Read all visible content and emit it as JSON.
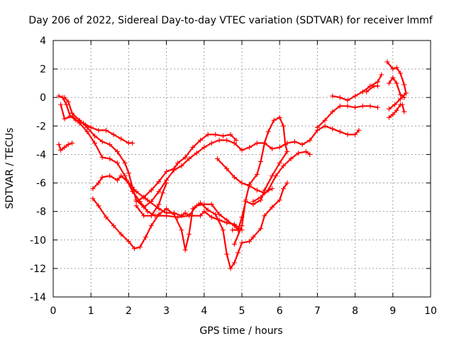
{
  "chart_data": {
    "type": "scatter",
    "title": "Day 206 of 2022, Sidereal Day-to-day VTEC variation (SDTVAR) for receiver lmmf",
    "xlabel": "GPS time / hours",
    "ylabel": "SDTVAR / TECUs",
    "xlim": [
      0,
      10
    ],
    "ylim": [
      -14,
      4
    ],
    "xticks": [
      "0",
      "1",
      "2",
      "3",
      "4",
      "5",
      "6",
      "7",
      "8",
      "9",
      "10"
    ],
    "yticks": [
      "4",
      "2",
      "0",
      "-2",
      "-4",
      "-6",
      "-8",
      "-10",
      "-12",
      "-14"
    ],
    "grid": true,
    "marker": "+",
    "color": "#ff0000",
    "series": [
      {
        "points": [
          [
            0.15,
            0.1
          ],
          [
            0.25,
            0.0
          ],
          [
            0.35,
            -0.5
          ],
          [
            0.45,
            -1.3
          ],
          [
            0.6,
            -1.6
          ],
          [
            0.8,
            -1.8
          ],
          [
            1.0,
            -2.1
          ],
          [
            1.2,
            -2.3
          ],
          [
            1.4,
            -2.3
          ],
          [
            1.6,
            -2.6
          ],
          [
            1.8,
            -2.9
          ],
          [
            2.0,
            -3.2
          ],
          [
            2.1,
            -3.2
          ]
        ]
      },
      {
        "points": [
          [
            0.15,
            -3.3
          ],
          [
            0.2,
            -3.7
          ],
          [
            0.3,
            -3.5
          ],
          [
            0.4,
            -3.3
          ],
          [
            0.5,
            -3.2
          ]
        ]
      },
      {
        "points": [
          [
            0.2,
            -0.5
          ],
          [
            0.3,
            -1.5
          ],
          [
            0.5,
            -1.3
          ],
          [
            0.7,
            -1.8
          ],
          [
            0.9,
            -2.4
          ],
          [
            1.1,
            -3.2
          ],
          [
            1.3,
            -4.2
          ],
          [
            1.5,
            -4.3
          ],
          [
            1.7,
            -4.6
          ],
          [
            1.9,
            -5.5
          ],
          [
            2.1,
            -6.6
          ],
          [
            2.3,
            -7.3
          ],
          [
            2.5,
            -8.0
          ],
          [
            2.7,
            -8.3
          ],
          [
            3.0,
            -8.3
          ],
          [
            3.3,
            -8.4
          ],
          [
            3.6,
            -8.3
          ],
          [
            3.9,
            -8.3
          ],
          [
            4.0,
            -8.0
          ],
          [
            4.2,
            -8.4
          ],
          [
            4.4,
            -8.6
          ],
          [
            4.6,
            -8.8
          ],
          [
            4.8,
            -8.9
          ],
          [
            5.0,
            -9.3
          ]
        ]
      },
      {
        "points": [
          [
            0.3,
            0.0
          ],
          [
            0.4,
            -0.3
          ],
          [
            0.5,
            -1.1
          ],
          [
            0.7,
            -1.6
          ],
          [
            0.9,
            -2.1
          ],
          [
            1.1,
            -2.7
          ],
          [
            1.3,
            -3.1
          ],
          [
            1.5,
            -3.3
          ],
          [
            1.7,
            -3.8
          ],
          [
            1.9,
            -4.6
          ],
          [
            2.0,
            -5.3
          ],
          [
            2.1,
            -6.3
          ],
          [
            2.2,
            -7.2
          ],
          [
            2.4,
            -7.7
          ],
          [
            2.6,
            -7.3
          ],
          [
            2.8,
            -6.6
          ],
          [
            3.0,
            -5.8
          ],
          [
            3.2,
            -5.1
          ],
          [
            3.4,
            -4.8
          ],
          [
            3.6,
            -4.3
          ],
          [
            3.8,
            -3.9
          ],
          [
            4.0,
            -3.5
          ],
          [
            4.2,
            -3.2
          ],
          [
            4.4,
            -3.0
          ],
          [
            4.6,
            -3.0
          ],
          [
            4.8,
            -3.2
          ],
          [
            5.0,
            -3.7
          ],
          [
            5.2,
            -3.5
          ],
          [
            5.4,
            -3.2
          ],
          [
            5.6,
            -3.2
          ],
          [
            5.8,
            -3.6
          ],
          [
            6.0,
            -3.5
          ],
          [
            6.2,
            -3.2
          ],
          [
            6.4,
            -3.1
          ],
          [
            6.6,
            -3.3
          ],
          [
            6.8,
            -3.0
          ],
          [
            7.0,
            -2.3
          ],
          [
            7.2,
            -2.0
          ],
          [
            7.4,
            -2.2
          ],
          [
            7.6,
            -2.4
          ],
          [
            7.8,
            -2.6
          ],
          [
            8.0,
            -2.6
          ],
          [
            8.1,
            -2.3
          ]
        ]
      },
      {
        "points": [
          [
            1.05,
            -6.4
          ],
          [
            1.2,
            -6.0
          ],
          [
            1.3,
            -5.6
          ],
          [
            1.5,
            -5.5
          ],
          [
            1.7,
            -5.8
          ],
          [
            1.8,
            -5.5
          ],
          [
            2.0,
            -6.0
          ],
          [
            2.2,
            -6.6
          ],
          [
            2.5,
            -7.2
          ],
          [
            2.8,
            -7.8
          ],
          [
            3.0,
            -8.1
          ],
          [
            3.2,
            -8.1
          ],
          [
            3.4,
            -8.3
          ],
          [
            3.5,
            -8.1
          ],
          [
            3.6,
            -8.3
          ],
          [
            3.8,
            -7.6
          ],
          [
            4.0,
            -7.5
          ],
          [
            4.2,
            -7.5
          ],
          [
            4.4,
            -8.2
          ],
          [
            4.6,
            -8.6
          ],
          [
            4.8,
            -9.0
          ],
          [
            4.9,
            -9.3
          ]
        ]
      },
      {
        "points": [
          [
            1.05,
            -7.1
          ],
          [
            1.2,
            -7.6
          ],
          [
            1.4,
            -8.4
          ],
          [
            1.6,
            -9.0
          ],
          [
            1.8,
            -9.6
          ],
          [
            2.0,
            -10.1
          ],
          [
            2.15,
            -10.6
          ],
          [
            2.3,
            -10.5
          ],
          [
            2.45,
            -9.8
          ],
          [
            2.6,
            -9.0
          ],
          [
            2.8,
            -8.2
          ],
          [
            3.0,
            -7.8
          ],
          [
            3.2,
            -8.2
          ],
          [
            3.4,
            -9.3
          ],
          [
            3.5,
            -10.7
          ],
          [
            3.6,
            -9.6
          ],
          [
            3.7,
            -7.8
          ],
          [
            3.9,
            -7.4
          ],
          [
            4.1,
            -7.9
          ],
          [
            4.3,
            -8.2
          ],
          [
            4.5,
            -9.3
          ],
          [
            4.6,
            -11.0
          ],
          [
            4.7,
            -12.0
          ],
          [
            4.8,
            -11.6
          ],
          [
            4.9,
            -10.9
          ],
          [
            5.0,
            -10.2
          ],
          [
            5.2,
            -10.1
          ],
          [
            5.3,
            -9.8
          ],
          [
            5.5,
            -9.2
          ],
          [
            5.6,
            -8.3
          ],
          [
            5.8,
            -7.7
          ],
          [
            6.0,
            -7.2
          ],
          [
            6.1,
            -6.4
          ],
          [
            6.2,
            -6.0
          ]
        ]
      },
      {
        "points": [
          [
            2.2,
            -7.3
          ],
          [
            2.4,
            -7.0
          ],
          [
            2.6,
            -6.5
          ],
          [
            2.8,
            -5.9
          ],
          [
            3.0,
            -5.2
          ],
          [
            3.2,
            -5.0
          ],
          [
            3.3,
            -4.6
          ],
          [
            3.5,
            -4.2
          ],
          [
            3.7,
            -3.5
          ],
          [
            3.9,
            -3.0
          ],
          [
            4.1,
            -2.6
          ],
          [
            4.3,
            -2.6
          ],
          [
            4.5,
            -2.7
          ],
          [
            4.7,
            -2.6
          ],
          [
            4.85,
            -3.0
          ]
        ]
      },
      {
        "points": [
          [
            2.2,
            -7.6
          ],
          [
            2.4,
            -8.3
          ],
          [
            2.6,
            -8.3
          ],
          [
            2.8,
            -7.5
          ],
          [
            2.9,
            -6.7
          ],
          [
            3.0,
            -6.0
          ]
        ]
      },
      {
        "points": [
          [
            4.35,
            -4.3
          ],
          [
            4.6,
            -5.0
          ],
          [
            4.8,
            -5.6
          ],
          [
            5.0,
            -6.0
          ],
          [
            5.2,
            -6.2
          ],
          [
            5.4,
            -6.5
          ],
          [
            5.6,
            -6.7
          ],
          [
            5.8,
            -6.4
          ]
        ]
      },
      {
        "points": [
          [
            4.8,
            -10.3
          ],
          [
            5.0,
            -9.0
          ],
          [
            5.1,
            -7.2
          ],
          [
            5.2,
            -6.1
          ],
          [
            5.4,
            -5.4
          ],
          [
            5.5,
            -4.5
          ],
          [
            5.6,
            -3.2
          ],
          [
            5.7,
            -2.4
          ],
          [
            5.85,
            -1.6
          ],
          [
            6.0,
            -1.4
          ],
          [
            6.1,
            -2.0
          ],
          [
            6.15,
            -3.3
          ],
          [
            6.2,
            -3.8
          ],
          [
            6.0,
            -4.6
          ],
          [
            5.8,
            -5.5
          ],
          [
            5.6,
            -6.5
          ],
          [
            5.5,
            -7.2
          ],
          [
            5.3,
            -7.5
          ],
          [
            5.1,
            -7.3
          ],
          [
            5.0,
            -8.4
          ],
          [
            4.9,
            -9.3
          ],
          [
            4.75,
            -9.3
          ]
        ]
      },
      {
        "points": [
          [
            5.3,
            -7.3
          ],
          [
            5.5,
            -7.0
          ],
          [
            5.7,
            -6.5
          ],
          [
            5.9,
            -5.5
          ],
          [
            6.1,
            -4.8
          ],
          [
            6.3,
            -4.3
          ],
          [
            6.5,
            -3.9
          ],
          [
            6.7,
            -3.8
          ],
          [
            6.8,
            -4.0
          ]
        ]
      },
      {
        "points": [
          [
            7.4,
            0.1
          ],
          [
            7.6,
            0.0
          ],
          [
            7.8,
            -0.2
          ],
          [
            8.0,
            0.1
          ],
          [
            8.2,
            0.4
          ],
          [
            8.4,
            0.8
          ],
          [
            8.6,
            1.1
          ],
          [
            8.7,
            1.6
          ]
        ]
      },
      {
        "points": [
          [
            7.0,
            -2.1
          ],
          [
            7.2,
            -1.6
          ],
          [
            7.4,
            -1.0
          ],
          [
            7.6,
            -0.6
          ],
          [
            7.8,
            -0.6
          ],
          [
            8.0,
            -0.7
          ],
          [
            8.2,
            -0.6
          ],
          [
            8.4,
            -0.6
          ],
          [
            8.6,
            -0.7
          ]
        ]
      },
      {
        "points": [
          [
            8.3,
            0.4
          ],
          [
            8.5,
            0.8
          ],
          [
            8.6,
            0.8
          ]
        ]
      },
      {
        "points": [
          [
            8.85,
            2.5
          ],
          [
            9.0,
            2.0
          ],
          [
            9.1,
            2.1
          ],
          [
            9.2,
            1.7
          ],
          [
            9.3,
            0.9
          ],
          [
            9.35,
            0.3
          ],
          [
            9.2,
            -0.1
          ],
          [
            9.05,
            -0.5
          ],
          [
            8.9,
            -0.8
          ]
        ]
      },
      {
        "points": [
          [
            8.9,
            1.0
          ],
          [
            9.0,
            1.4
          ],
          [
            9.1,
            1.0
          ],
          [
            9.2,
            0.2
          ],
          [
            9.3,
            0.0
          ]
        ]
      },
      {
        "points": [
          [
            8.9,
            -1.4
          ],
          [
            9.0,
            -1.2
          ],
          [
            9.1,
            -0.9
          ],
          [
            9.2,
            -0.5
          ],
          [
            9.25,
            -0.5
          ],
          [
            9.3,
            -1.0
          ]
        ]
      }
    ]
  }
}
